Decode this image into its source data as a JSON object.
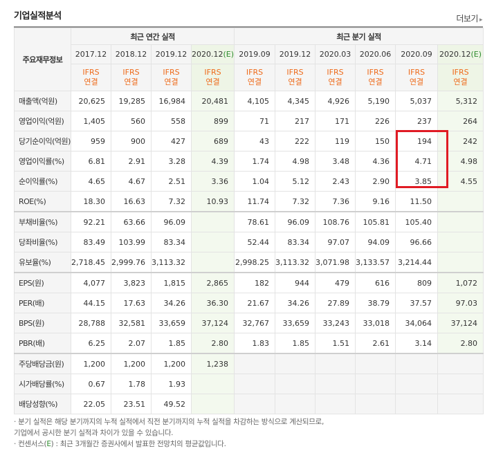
{
  "title": "기업실적분석",
  "more_label": "더보기",
  "header": {
    "row_head": "주요재무정보",
    "annual_group": "최근 연간 실적",
    "quarter_group": "최근 분기 실적",
    "periods": [
      {
        "label": "2017.12",
        "est": false
      },
      {
        "label": "2018.12",
        "est": false
      },
      {
        "label": "2019.12",
        "est": false
      },
      {
        "label": "2020.12",
        "est": true
      },
      {
        "label": "2019.09",
        "est": false
      },
      {
        "label": "2019.12",
        "est": false
      },
      {
        "label": "2020.03",
        "est": false
      },
      {
        "label": "2020.06",
        "est": false
      },
      {
        "label": "2020.09",
        "est": false
      },
      {
        "label": "2020.12",
        "est": true
      }
    ],
    "est_mark": "(E)",
    "ifrs_line1": "IFRS",
    "ifrs_line2": "연결"
  },
  "rows": [
    {
      "label": "매출액(억원)",
      "values": [
        "20,625",
        "19,285",
        "16,984",
        "20,481",
        "4,105",
        "4,345",
        "4,926",
        "5,190",
        "5,037",
        "5,312"
      ]
    },
    {
      "label": "영업이익(억원)",
      "values": [
        "1,405",
        "560",
        "558",
        "899",
        "71",
        "217",
        "171",
        "226",
        "237",
        "264"
      ]
    },
    {
      "label": "당기순이익(억원)",
      "values": [
        "959",
        "900",
        "427",
        "689",
        "43",
        "222",
        "119",
        "150",
        "194",
        "242"
      ]
    },
    {
      "label": "영업이익률(%)",
      "values": [
        "6.81",
        "2.91",
        "3.28",
        "4.39",
        "1.74",
        "4.98",
        "3.48",
        "4.36",
        "4.71",
        "4.98"
      ]
    },
    {
      "label": "순이익률(%)",
      "values": [
        "4.65",
        "4.67",
        "2.51",
        "3.36",
        "1.04",
        "5.12",
        "2.43",
        "2.90",
        "3.85",
        "4.55"
      ]
    },
    {
      "label": "ROE(%)",
      "values": [
        "18.30",
        "16.63",
        "7.32",
        "10.93",
        "11.74",
        "7.32",
        "7.36",
        "9.16",
        "11.50",
        ""
      ]
    },
    {
      "label": "부채비율(%)",
      "values": [
        "92.21",
        "63.66",
        "96.09",
        "",
        "78.61",
        "96.09",
        "108.76",
        "105.81",
        "105.40",
        ""
      ],
      "gap": true
    },
    {
      "label": "당좌비율(%)",
      "values": [
        "83.49",
        "103.99",
        "83.34",
        "",
        "52.44",
        "83.34",
        "97.07",
        "94.09",
        "96.66",
        ""
      ]
    },
    {
      "label": "유보율(%)",
      "values": [
        "2,718.45",
        "2,999.76",
        "3,113.32",
        "",
        "2,998.25",
        "3,113.32",
        "3,071.98",
        "3,133.57",
        "3,214.44",
        ""
      ]
    },
    {
      "label": "EPS(원)",
      "values": [
        "4,077",
        "3,823",
        "1,815",
        "2,865",
        "182",
        "944",
        "479",
        "616",
        "809",
        "1,072"
      ],
      "gap": true
    },
    {
      "label": "PER(배)",
      "values": [
        "44.15",
        "17.63",
        "34.26",
        "36.30",
        "21.67",
        "34.26",
        "27.89",
        "38.79",
        "37.57",
        "97.03"
      ]
    },
    {
      "label": "BPS(원)",
      "values": [
        "28,788",
        "32,581",
        "33,659",
        "37,124",
        "32,767",
        "33,659",
        "33,243",
        "33,018",
        "34,064",
        "37,124"
      ]
    },
    {
      "label": "PBR(배)",
      "values": [
        "6.25",
        "2.07",
        "1.85",
        "2.80",
        "1.83",
        "1.85",
        "1.51",
        "2.61",
        "3.14",
        "2.80"
      ]
    },
    {
      "label": "주당배당금(원)",
      "values": [
        "1,200",
        "1,200",
        "1,200",
        "1,238",
        "",
        "",
        "",
        "",
        "",
        ""
      ],
      "gap": true,
      "quarter_empty": true
    },
    {
      "label": "시가배당률(%)",
      "values": [
        "0.67",
        "1.78",
        "1.93",
        "",
        "",
        "",
        "",
        "",
        "",
        ""
      ],
      "quarter_empty": true
    },
    {
      "label": "배당성향(%)",
      "values": [
        "22.05",
        "23.51",
        "49.52",
        "",
        "",
        "",
        "",
        "",
        "",
        ""
      ],
      "quarter_empty": true
    }
  ],
  "notes": {
    "line1": "· 분기 실적은 해당 분기까지의 누적 실적에서 직전 분기까지의 누적 실적을 차감하는 방식으로 계산되므로,",
    "line2": "  기업에서 공시한 분기 실적과 차이가 있을 수 있습니다.",
    "line3_pre": "· 컨센서스(",
    "line3_e": "E",
    "line3_post": ") : 최근 3개월간 증권사에서 발표한 전망치의 평균값입니다."
  }
}
